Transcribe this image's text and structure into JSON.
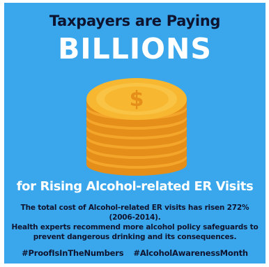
{
  "headline": "Taxpayers are Paying",
  "emphasis": "BILLIONS",
  "subheadline": "for Rising Alcohol-related ER Visits",
  "body_lines": [
    "The total cost of Alcohol-related ER visits has risen 272% (2006-2014).",
    "Health experts recommend more alcohol policy safeguards to",
    "prevent dangerous drinking and its consequences."
  ],
  "hashtags": [
    "#ProofIsInTheNumbers",
    "#AlcoholAwarenessMonth"
  ],
  "illustration": {
    "icon": "coin-stack-icon",
    "symbol": "$"
  },
  "colors": {
    "background": "#3aa7ec",
    "dark_text": "#0e1430",
    "light_text": "#ffffff",
    "coin_face": "#f7b731",
    "coin_edge": "#e58e1a"
  }
}
